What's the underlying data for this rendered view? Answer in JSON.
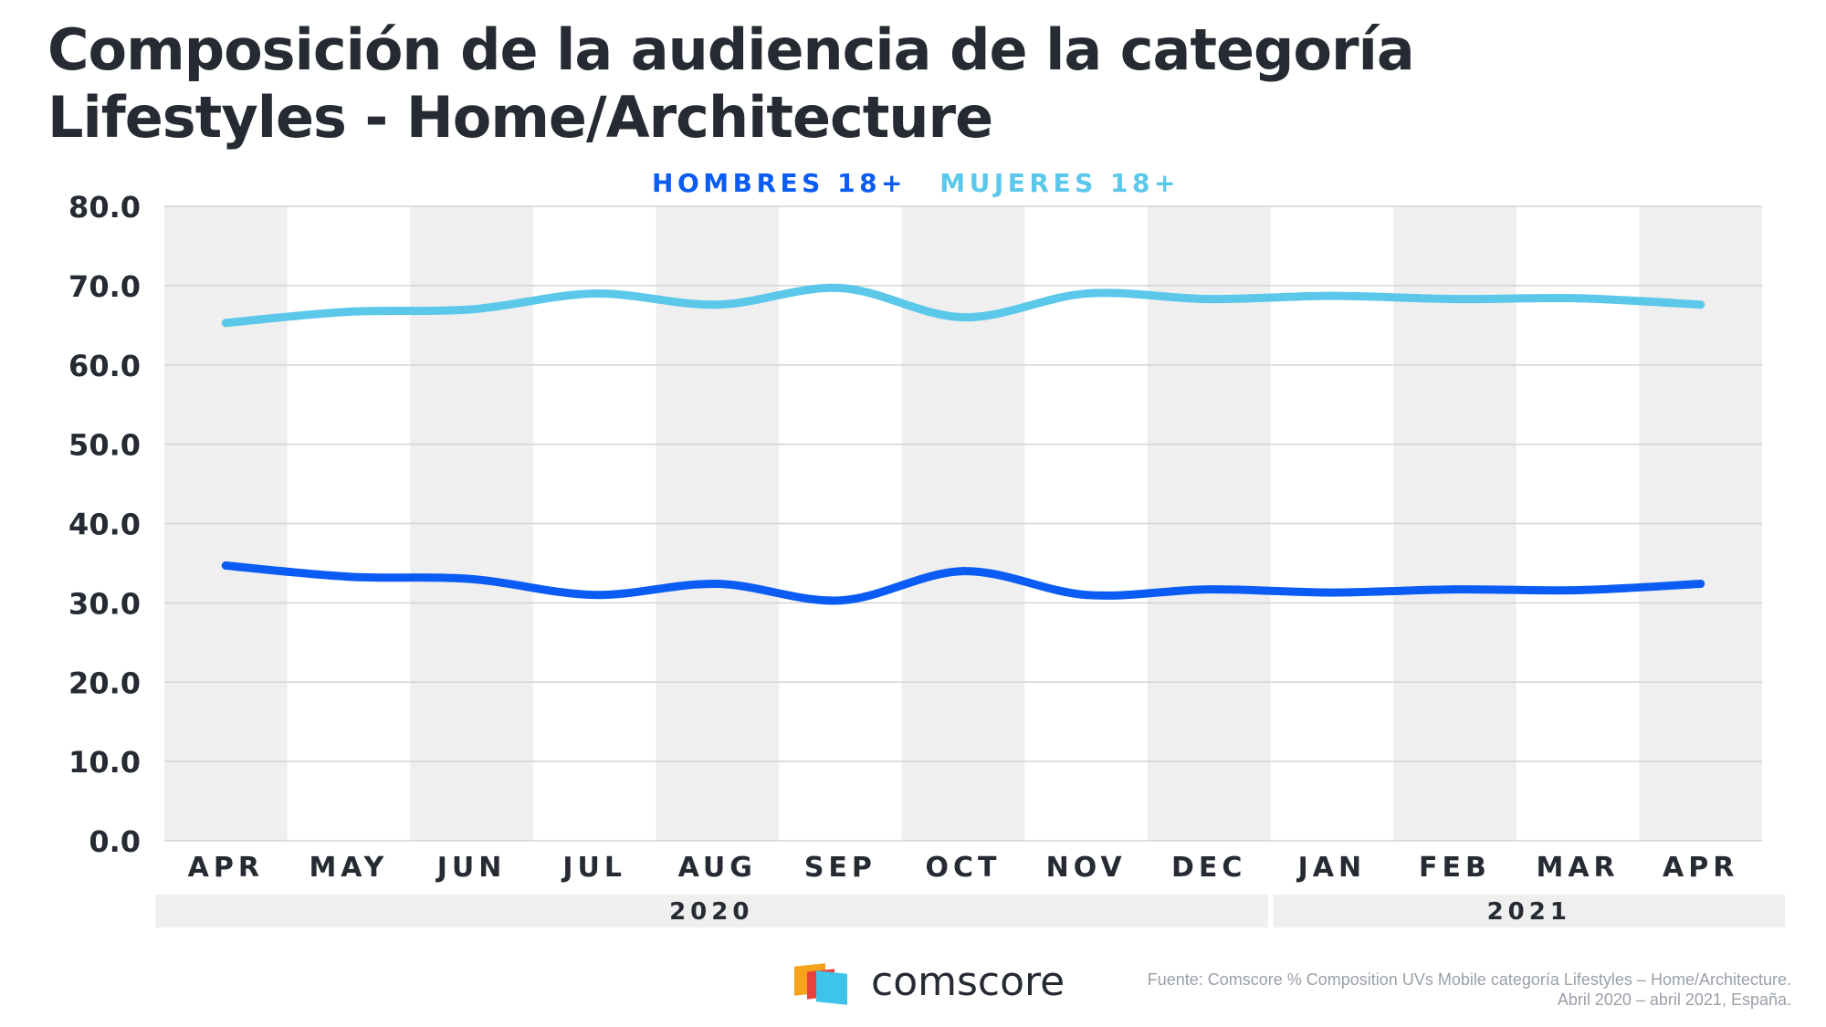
{
  "title": {
    "line1": "Composición de la audiencia de la categoría",
    "line2": "Lifestyles - Home/Architecture"
  },
  "colors": {
    "hombres": "#0a5cf5",
    "mujeres": "#5bc8ea",
    "band": "#efefef",
    "grid": "#d4d4d4",
    "text": "#262b33"
  },
  "chart_data": {
    "type": "line",
    "categories": [
      "APR",
      "MAY",
      "JUN",
      "JUL",
      "AUG",
      "SEP",
      "OCT",
      "NOV",
      "DEC",
      "JAN",
      "FEB",
      "MAR",
      "APR"
    ],
    "year_groups": [
      {
        "label": "2020",
        "start": 0,
        "end": 8
      },
      {
        "label": "2021",
        "start": 9,
        "end": 12
      }
    ],
    "series": [
      {
        "name": "HOMBRES 18+",
        "color": "#0a5cf5",
        "values": [
          34.7,
          33.3,
          33.0,
          31.0,
          32.4,
          30.3,
          34.0,
          31.0,
          31.7,
          31.3,
          31.7,
          31.6,
          32.4
        ]
      },
      {
        "name": "MUJERES 18+",
        "color": "#5bc8ea",
        "values": [
          65.3,
          66.7,
          67.0,
          69.0,
          67.6,
          69.7,
          66.0,
          69.0,
          68.3,
          68.7,
          68.3,
          68.4,
          67.6
        ]
      }
    ],
    "ylim": [
      0,
      80
    ],
    "yticks": [
      "0.0",
      "10.0",
      "20.0",
      "30.0",
      "40.0",
      "50.0",
      "60.0",
      "70.0",
      "80.0"
    ],
    "grid": true,
    "legend_position": "top-center",
    "xlabel": "",
    "ylabel": ""
  },
  "footer": {
    "brand": "comscore",
    "source_line1": "Fuente: Comscore % Composition UVs Mobile categoría Lifestyles – Home/Architecture.",
    "source_line2": "Abril 2020 – abril 2021, España."
  }
}
